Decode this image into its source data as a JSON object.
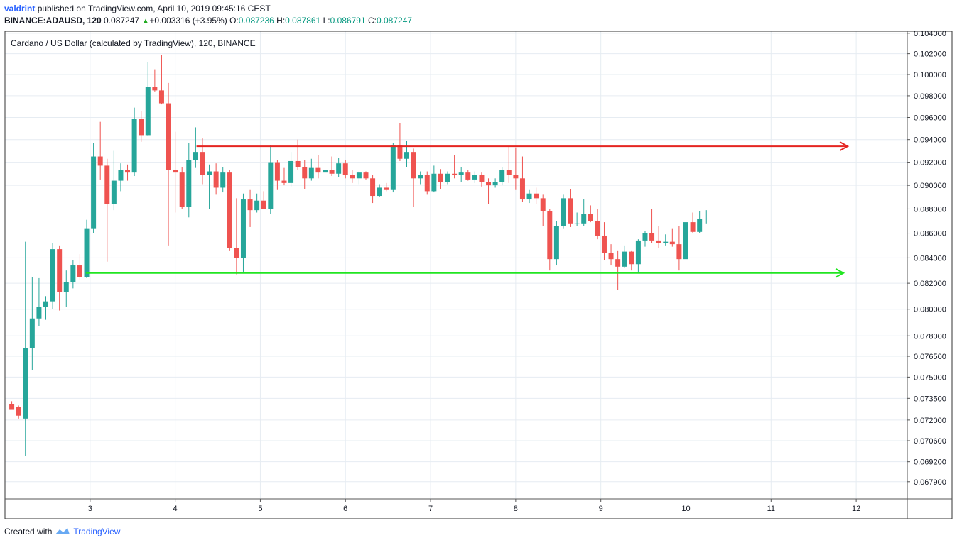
{
  "header": {
    "user": "valdrint",
    "published_text": "published on TradingView.com, April 10, 2019 09:45:16 CEST",
    "symbol": "BINANCE:ADAUSD, 120",
    "last": "0.087247",
    "change": "+0.003316 (+3.95%)",
    "o_label": "O:",
    "o_value": "0.087236",
    "h_label": "H:",
    "h_value": "0.087861",
    "l_label": "L:",
    "l_value": "0.086791",
    "c_label": "C:",
    "c_value": "0.087247"
  },
  "footer": {
    "created_with": "Created with",
    "brand": "TradingView"
  },
  "chart_data": {
    "type": "candlestick",
    "title": "Cardano / US Dollar (calculated by TradingView), 120, BINANCE",
    "x_axis": {
      "ticks": [
        {
          "x": 3,
          "label": "3"
        },
        {
          "x": 4,
          "label": "4"
        },
        {
          "x": 5,
          "label": "5"
        },
        {
          "x": 6,
          "label": "6"
        },
        {
          "x": 7,
          "label": "7"
        },
        {
          "x": 8,
          "label": "8"
        },
        {
          "x": 9,
          "label": "9"
        },
        {
          "x": 10,
          "label": "10"
        },
        {
          "x": 11,
          "label": "11"
        },
        {
          "x": 12,
          "label": "12"
        }
      ],
      "range": [
        2.0,
        12.6
      ]
    },
    "y_axis": {
      "scale": "log",
      "ticks": [
        "0.104000",
        "0.102000",
        "0.100000",
        "0.098000",
        "0.096000",
        "0.094000",
        "0.092000",
        "0.090000",
        "0.088000",
        "0.086000",
        "0.084000",
        "0.082000",
        "0.080000",
        "0.078000",
        "0.076500",
        "0.075000",
        "0.073500",
        "0.072000",
        "0.070600",
        "0.069200",
        "0.067900"
      ],
      "range": [
        0.0668,
        0.1042
      ]
    },
    "candles": [
      [
        2.08,
        0.0731,
        0.0733,
        0.0729,
        0.0727
      ],
      [
        2.16,
        0.0729,
        0.073,
        0.0721,
        0.0723
      ],
      [
        2.24,
        0.0721,
        0.0853,
        0.0696,
        0.0771
      ],
      [
        2.32,
        0.0771,
        0.0825,
        0.0755,
        0.0793
      ],
      [
        2.4,
        0.0793,
        0.0824,
        0.0787,
        0.0802
      ],
      [
        2.48,
        0.0802,
        0.081,
        0.0792,
        0.0806
      ],
      [
        2.56,
        0.0806,
        0.0852,
        0.08,
        0.0847
      ],
      [
        2.64,
        0.0847,
        0.085,
        0.0799,
        0.0813
      ],
      [
        2.72,
        0.0813,
        0.083,
        0.0802,
        0.0821
      ],
      [
        2.8,
        0.0821,
        0.0838,
        0.0816,
        0.0834
      ],
      [
        2.88,
        0.0834,
        0.0843,
        0.0823,
        0.0825
      ],
      [
        2.96,
        0.0825,
        0.0871,
        0.0824,
        0.0864
      ],
      [
        3.04,
        0.0864,
        0.0937,
        0.086,
        0.0925
      ],
      [
        3.12,
        0.0925,
        0.0956,
        0.0905,
        0.0917
      ],
      [
        3.2,
        0.0917,
        0.0923,
        0.0837,
        0.0884
      ],
      [
        3.28,
        0.0884,
        0.093,
        0.0879,
        0.0904
      ],
      [
        3.36,
        0.0904,
        0.0919,
        0.0895,
        0.0913
      ],
      [
        3.44,
        0.0913,
        0.0918,
        0.0904,
        0.0911
      ],
      [
        3.52,
        0.0911,
        0.0969,
        0.0908,
        0.0959
      ],
      [
        3.6,
        0.0959,
        0.0966,
        0.0938,
        0.0944
      ],
      [
        3.68,
        0.0944,
        0.1012,
        0.0943,
        0.0988
      ],
      [
        3.76,
        0.0988,
        0.1005,
        0.0984,
        0.0985
      ],
      [
        3.84,
        0.0985,
        0.1019,
        0.0972,
        0.0973
      ],
      [
        3.92,
        0.0973,
        0.0992,
        0.085,
        0.0913
      ],
      [
        4.0,
        0.0913,
        0.0947,
        0.0877,
        0.0911
      ],
      [
        4.08,
        0.0911,
        0.0916,
        0.088,
        0.0882
      ],
      [
        4.16,
        0.0882,
        0.0937,
        0.0873,
        0.0922
      ],
      [
        4.24,
        0.0922,
        0.0951,
        0.0915,
        0.0929
      ],
      [
        4.32,
        0.0929,
        0.0941,
        0.0901,
        0.0909
      ],
      [
        4.4,
        0.0909,
        0.0918,
        0.088,
        0.0912
      ],
      [
        4.48,
        0.0912,
        0.0919,
        0.0892,
        0.0898
      ],
      [
        4.56,
        0.0898,
        0.0916,
        0.0894,
        0.0911
      ],
      [
        4.64,
        0.0911,
        0.0913,
        0.0846,
        0.0848
      ],
      [
        4.72,
        0.0848,
        0.0889,
        0.0827,
        0.084
      ],
      [
        4.8,
        0.084,
        0.0893,
        0.0829,
        0.0888
      ],
      [
        4.88,
        0.0888,
        0.0896,
        0.0865,
        0.0879
      ],
      [
        4.96,
        0.0879,
        0.0893,
        0.0877,
        0.0887
      ],
      [
        5.04,
        0.0887,
        0.0895,
        0.088,
        0.088
      ],
      [
        5.12,
        0.088,
        0.0935,
        0.0876,
        0.092
      ],
      [
        5.2,
        0.092,
        0.0922,
        0.0896,
        0.0904
      ],
      [
        5.28,
        0.0904,
        0.0915,
        0.09,
        0.0902
      ],
      [
        5.36,
        0.0902,
        0.0929,
        0.0899,
        0.0921
      ],
      [
        5.44,
        0.0921,
        0.094,
        0.0913,
        0.0916
      ],
      [
        5.52,
        0.0916,
        0.0922,
        0.0897,
        0.0906
      ],
      [
        5.6,
        0.0906,
        0.0923,
        0.0904,
        0.0915
      ],
      [
        5.68,
        0.0915,
        0.0926,
        0.0906,
        0.0911
      ],
      [
        5.76,
        0.0911,
        0.0915,
        0.0905,
        0.0913
      ],
      [
        5.84,
        0.0913,
        0.0925,
        0.0908,
        0.091
      ],
      [
        5.92,
        0.091,
        0.0924,
        0.0907,
        0.0919
      ],
      [
        6.0,
        0.0919,
        0.0922,
        0.0906,
        0.0909
      ],
      [
        6.08,
        0.0909,
        0.0913,
        0.0902,
        0.0906
      ],
      [
        6.16,
        0.0906,
        0.0912,
        0.0901,
        0.0911
      ],
      [
        6.24,
        0.0911,
        0.0912,
        0.0905,
        0.0906
      ],
      [
        6.32,
        0.0906,
        0.0909,
        0.0885,
        0.0891
      ],
      [
        6.4,
        0.0891,
        0.0901,
        0.089,
        0.0898
      ],
      [
        6.48,
        0.0898,
        0.0902,
        0.0895,
        0.0896
      ],
      [
        6.56,
        0.0896,
        0.0937,
        0.0894,
        0.0935
      ],
      [
        6.64,
        0.0935,
        0.0955,
        0.0921,
        0.0923
      ],
      [
        6.72,
        0.0923,
        0.0939,
        0.0916,
        0.0929
      ],
      [
        6.8,
        0.0929,
        0.0932,
        0.0882,
        0.0906
      ],
      [
        6.88,
        0.0906,
        0.0912,
        0.0901,
        0.0909
      ],
      [
        6.96,
        0.0909,
        0.0912,
        0.0892,
        0.0895
      ],
      [
        7.04,
        0.0895,
        0.0917,
        0.0894,
        0.091
      ],
      [
        7.12,
        0.091,
        0.0914,
        0.0897,
        0.0903
      ],
      [
        7.2,
        0.0903,
        0.0912,
        0.0901,
        0.091
      ],
      [
        7.28,
        0.091,
        0.0926,
        0.0906,
        0.0909
      ],
      [
        7.36,
        0.0909,
        0.0916,
        0.0903,
        0.0911
      ],
      [
        7.44,
        0.0911,
        0.0913,
        0.0904,
        0.0905
      ],
      [
        7.52,
        0.0905,
        0.0912,
        0.0902,
        0.0909
      ],
      [
        7.6,
        0.0909,
        0.0911,
        0.0899,
        0.0903
      ],
      [
        7.68,
        0.0903,
        0.0906,
        0.0884,
        0.09
      ],
      [
        7.76,
        0.09,
        0.0906,
        0.0898,
        0.0903
      ],
      [
        7.84,
        0.0903,
        0.0916,
        0.09,
        0.0913
      ],
      [
        7.92,
        0.0913,
        0.0934,
        0.0902,
        0.0909
      ],
      [
        8.0,
        0.0909,
        0.0933,
        0.0896,
        0.0906
      ],
      [
        8.08,
        0.0906,
        0.0925,
        0.0886,
        0.0888
      ],
      [
        8.16,
        0.0888,
        0.0896,
        0.0885,
        0.0893
      ],
      [
        8.24,
        0.0893,
        0.0898,
        0.0884,
        0.0889
      ],
      [
        8.32,
        0.0889,
        0.0892,
        0.0866,
        0.0878
      ],
      [
        8.4,
        0.0878,
        0.088,
        0.083,
        0.0839
      ],
      [
        8.48,
        0.0839,
        0.087,
        0.0834,
        0.0866
      ],
      [
        8.56,
        0.0866,
        0.0892,
        0.0864,
        0.0889
      ],
      [
        8.64,
        0.0889,
        0.0897,
        0.0865,
        0.0868
      ],
      [
        8.72,
        0.0868,
        0.0877,
        0.0866,
        0.0868
      ],
      [
        8.8,
        0.0868,
        0.0888,
        0.0866,
        0.0876
      ],
      [
        8.88,
        0.0876,
        0.0883,
        0.0869,
        0.087
      ],
      [
        8.96,
        0.087,
        0.088,
        0.0855,
        0.0858
      ],
      [
        9.04,
        0.0858,
        0.0869,
        0.0838,
        0.0844
      ],
      [
        9.12,
        0.0844,
        0.0851,
        0.0834,
        0.0839
      ],
      [
        9.2,
        0.0839,
        0.0846,
        0.0815,
        0.0833
      ],
      [
        9.28,
        0.0833,
        0.085,
        0.0832,
        0.0845
      ],
      [
        9.36,
        0.0845,
        0.0846,
        0.083,
        0.0835
      ],
      [
        9.44,
        0.0835,
        0.0855,
        0.0828,
        0.0854
      ],
      [
        9.52,
        0.0854,
        0.0862,
        0.0849,
        0.086
      ],
      [
        9.6,
        0.086,
        0.088,
        0.0852,
        0.0854
      ],
      [
        9.68,
        0.0854,
        0.0866,
        0.0848,
        0.0852
      ],
      [
        9.76,
        0.0852,
        0.0859,
        0.085,
        0.0853
      ],
      [
        9.84,
        0.0853,
        0.0864,
        0.0849,
        0.0851
      ],
      [
        9.92,
        0.0851,
        0.0866,
        0.083,
        0.0839
      ],
      [
        10.0,
        0.0839,
        0.0878,
        0.0836,
        0.0869
      ],
      [
        10.08,
        0.0869,
        0.0877,
        0.086,
        0.0861
      ],
      [
        10.16,
        0.0861,
        0.0878,
        0.086,
        0.0872
      ],
      [
        10.24,
        0.0872,
        0.0879,
        0.0868,
        0.0872
      ]
    ],
    "annotations": [
      {
        "type": "horizontal_line",
        "color": "#e52521",
        "y": 0.0934,
        "x_start": 4.25,
        "x_end": 11.9,
        "arrow": "right"
      },
      {
        "type": "horizontal_line",
        "color": "#21e521",
        "y": 0.0828,
        "x_start": 2.95,
        "x_end": 11.85,
        "arrow": "right"
      }
    ],
    "colors": {
      "up": "#26a69a",
      "down": "#ef5350",
      "grid": "#e6ecf2"
    }
  }
}
